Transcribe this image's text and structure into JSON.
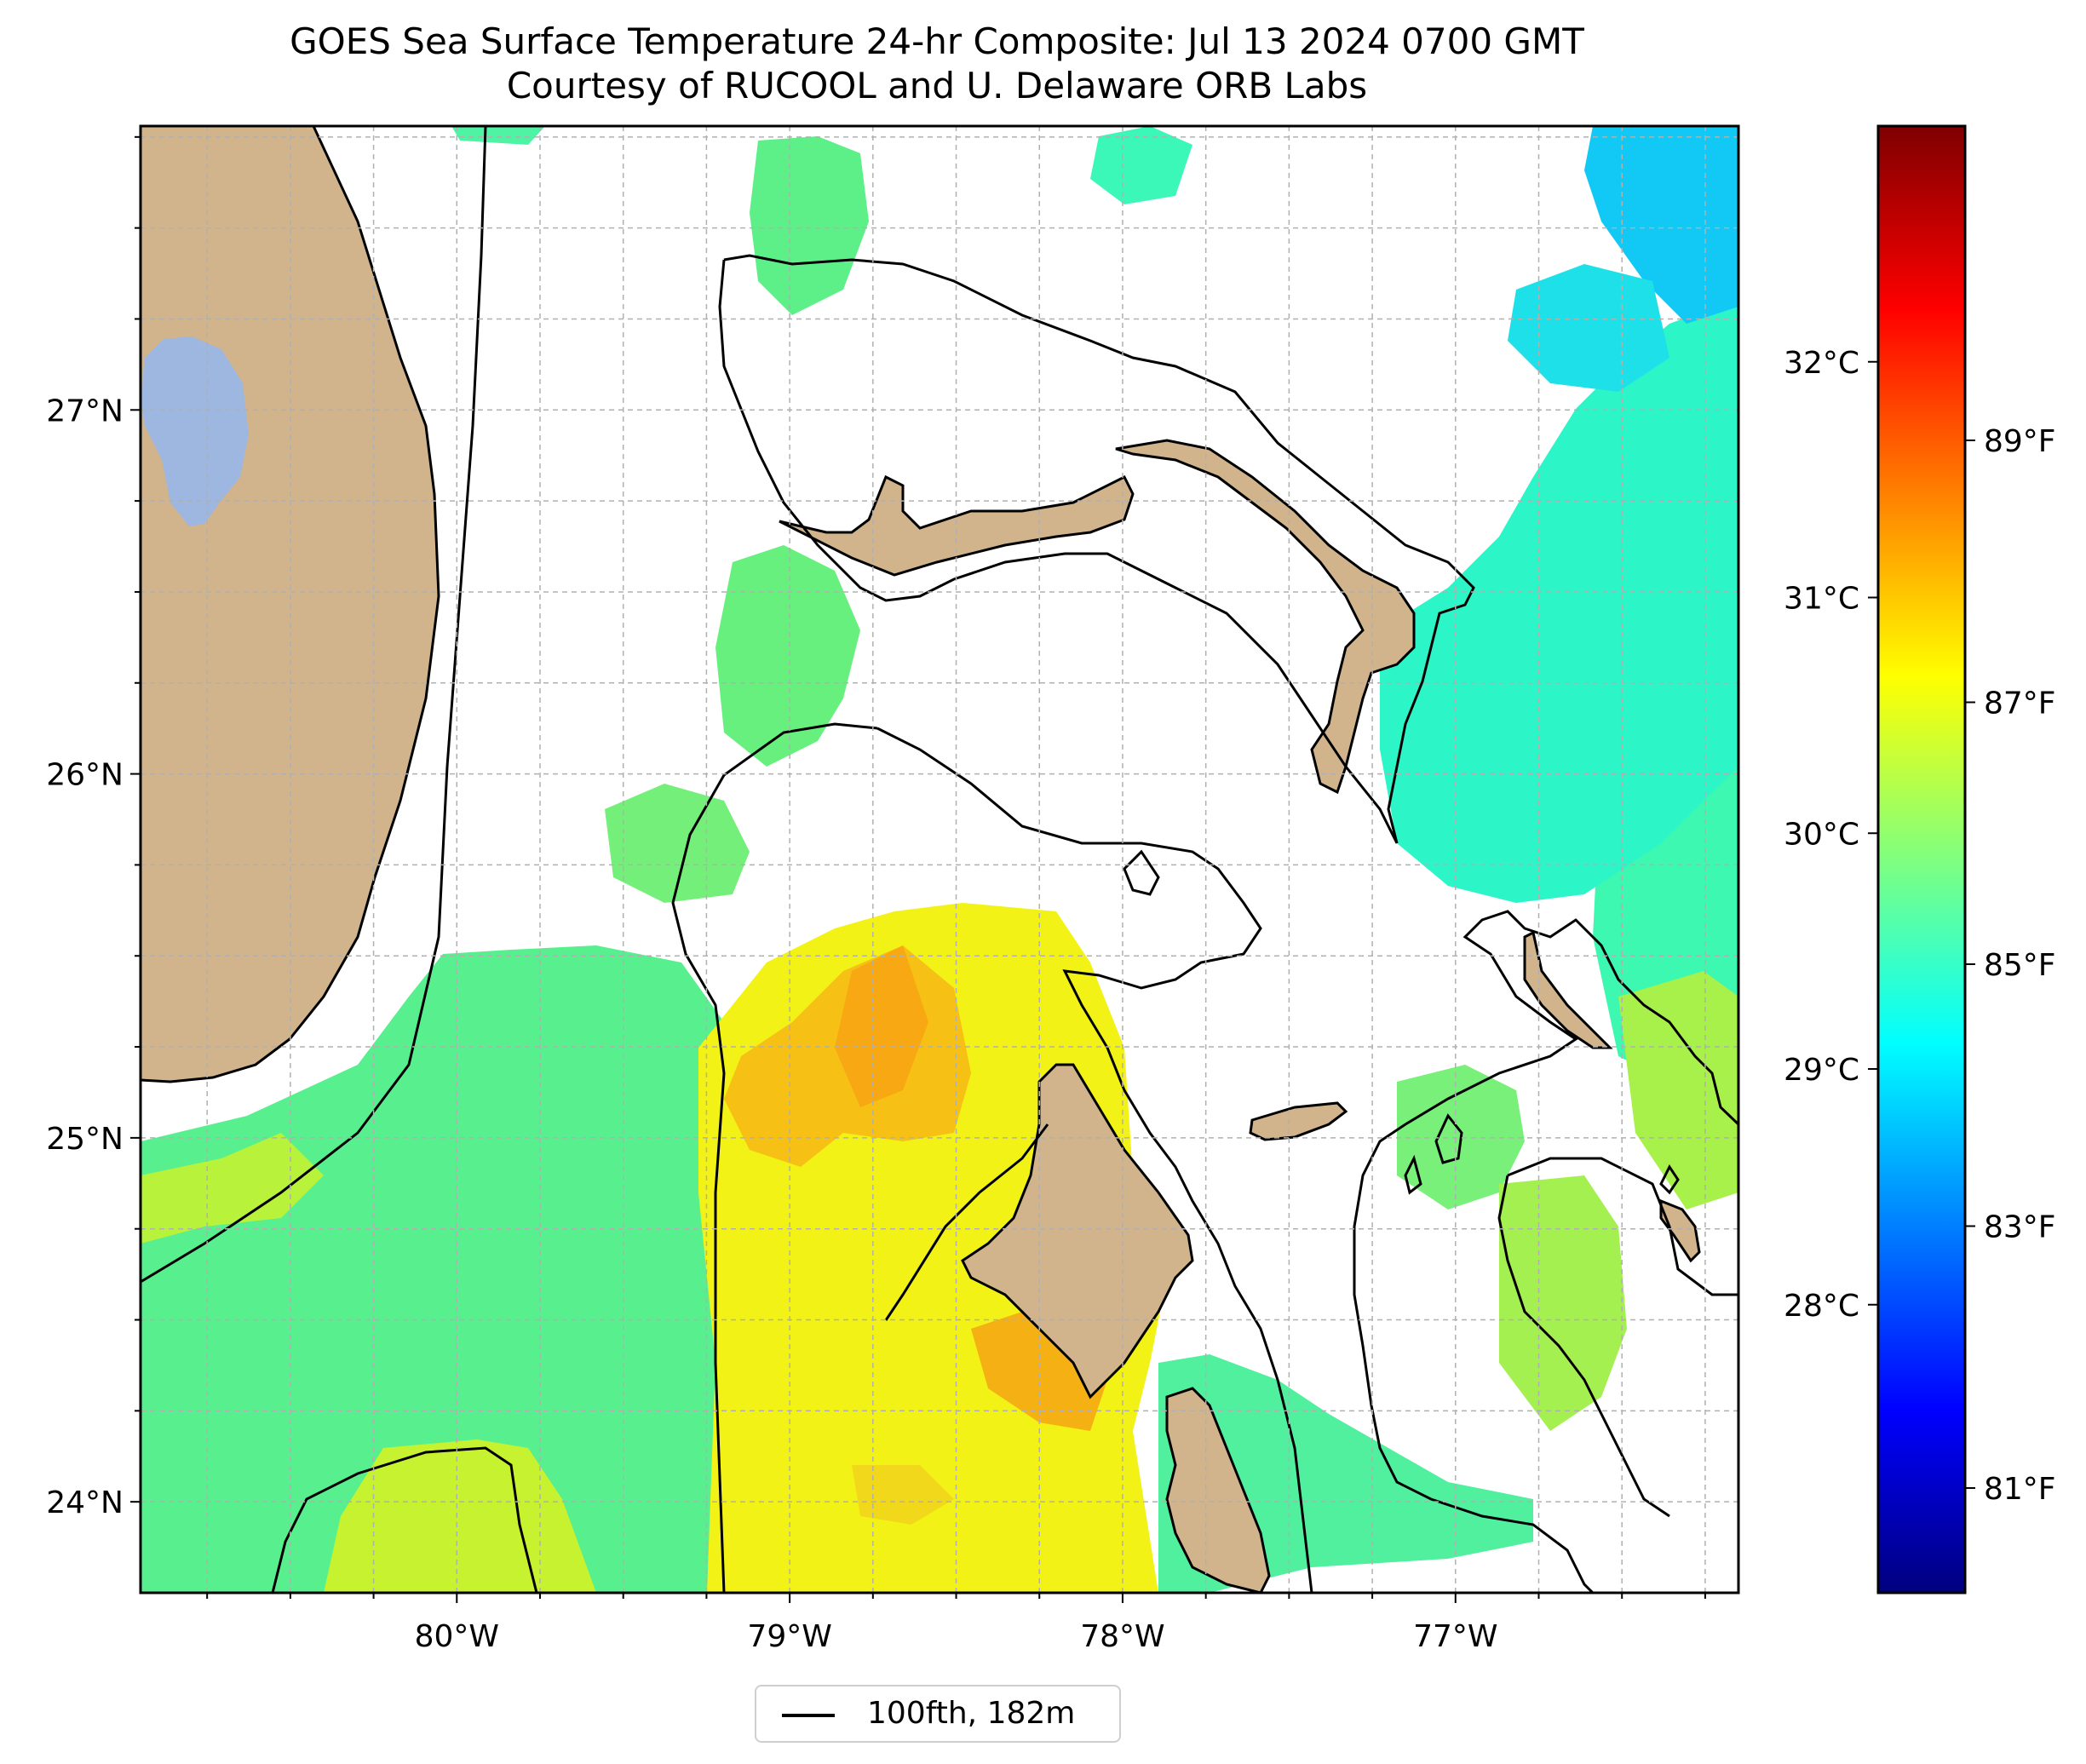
{
  "title": {
    "line1": "GOES Sea Surface Temperature 24-hr Composite: Jul 13 2024 0700 GMT",
    "line2": "Courtesy of RUCOOL and U. Delaware ORB Labs"
  },
  "map": {
    "lat_range": [
      23.75,
      27.78
    ],
    "lon_range": [
      -80.95,
      -76.15
    ],
    "lat_ticks": [
      {
        "value": 27,
        "label": "27°N"
      },
      {
        "value": 26,
        "label": "26°N"
      },
      {
        "value": 25,
        "label": "25°N"
      },
      {
        "value": 24,
        "label": "24°N"
      }
    ],
    "lon_ticks": [
      {
        "value": -80,
        "label": "80°W"
      },
      {
        "value": -79,
        "label": "79°W"
      },
      {
        "value": -78,
        "label": "78°W"
      },
      {
        "value": -77,
        "label": "77°W"
      }
    ],
    "gridlines": true,
    "land_color": "#d2b48c",
    "lake_color": "#9db7e0"
  },
  "colorbar": {
    "celsius_ticks": [
      {
        "value": 32,
        "label": "32°C"
      },
      {
        "value": 31,
        "label": "31°C"
      },
      {
        "value": 30,
        "label": "30°C"
      },
      {
        "value": 29,
        "label": "29°C"
      },
      {
        "value": 28,
        "label": "28°C"
      }
    ],
    "fahrenheit_ticks": [
      {
        "value": 89,
        "label": "89°F"
      },
      {
        "value": 87,
        "label": "87°F"
      },
      {
        "value": 85,
        "label": "85°F"
      },
      {
        "value": 83,
        "label": "83°F"
      },
      {
        "value": 81,
        "label": "81°F"
      }
    ],
    "colormap": "jet"
  },
  "legend": {
    "label": "100fth, 182m"
  }
}
